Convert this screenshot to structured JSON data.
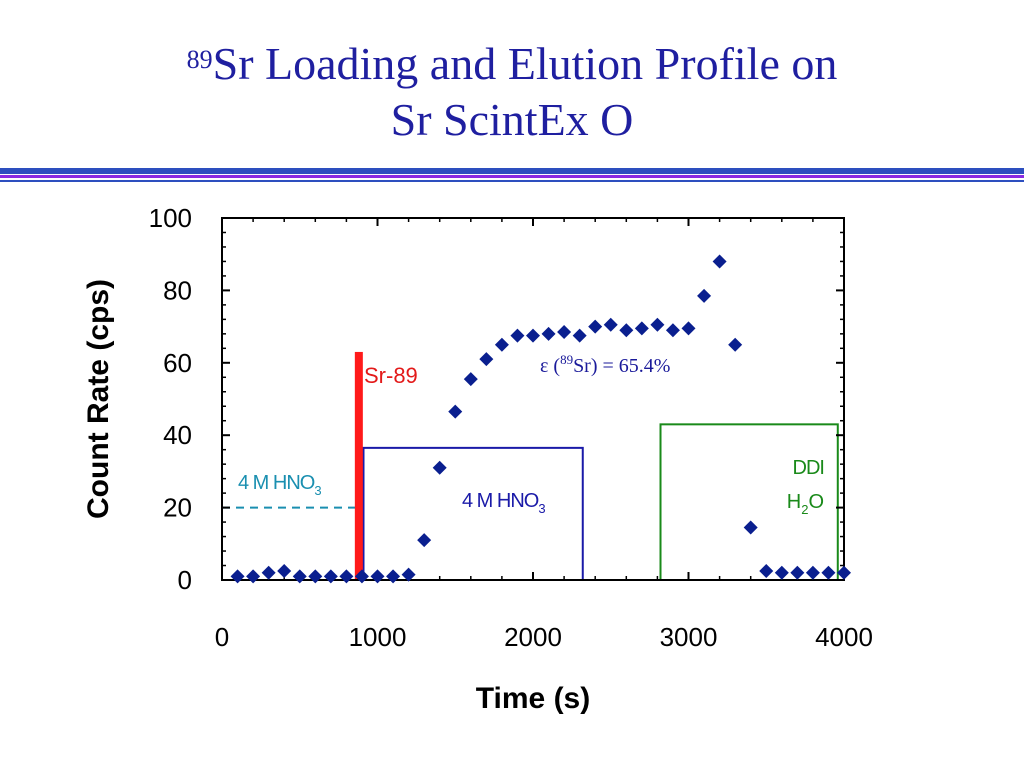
{
  "slide": {
    "title_sup": "89",
    "title_line1": "Sr Loading and Elution Profile on",
    "title_line2": "Sr ScintEx O",
    "colors": {
      "title": "#1f1fa0",
      "rule_blue": "#2d4fbf",
      "rule_purple": "#8a2be2"
    }
  },
  "chart_data": {
    "type": "scatter",
    "xlabel": "Time (s)",
    "ylabel": "Count Rate (cps)",
    "xlim": [
      0,
      4000
    ],
    "ylim": [
      0,
      100
    ],
    "x_ticks": [
      0,
      1000,
      2000,
      3000,
      4000
    ],
    "y_ticks": [
      0,
      20,
      40,
      60,
      80,
      100
    ],
    "x_tick_labels": [
      "0",
      "1000",
      "2000",
      "3000",
      "4000"
    ],
    "y_tick_labels": [
      "0",
      "20",
      "40",
      "60",
      "80",
      "100"
    ],
    "grid": false,
    "marker": "diamond",
    "marker_color": "#0a1f8f",
    "series": [
      {
        "x": [
          100,
          200,
          300,
          400,
          500,
          600,
          700,
          800,
          900,
          1000,
          1100,
          1200,
          1300,
          1400,
          1500,
          1600,
          1700,
          1800,
          1900,
          2000,
          2100,
          2200,
          2300,
          2400,
          2500,
          2600,
          2700,
          2800,
          2900,
          3000,
          3100,
          3200,
          3300,
          3400,
          3500,
          3600,
          3700,
          3800,
          3900,
          4000
        ],
        "y": [
          1,
          1,
          2,
          2.5,
          1,
          1,
          1,
          1,
          1,
          1,
          1,
          1.5,
          11,
          31,
          46.5,
          55.5,
          61,
          65,
          67.5,
          67.5,
          68,
          68.5,
          67.5,
          70,
          70.5,
          69,
          69.5,
          70.5,
          69,
          69.5,
          78.5,
          88,
          65,
          14.5,
          2.5,
          2,
          2,
          2,
          2,
          2
        ]
      }
    ],
    "annotations": {
      "sr89_label": "Sr-89",
      "sr89_bar": {
        "x": 880,
        "y_top": 63,
        "color": "#ff1a1a"
      },
      "efficiency": {
        "prefix": "ε (",
        "sup": "89",
        "suffix": "Sr) = 65.4%",
        "color": "#1a1a9a",
        "x": 2450,
        "y": 60
      },
      "load_box": {
        "line1": "4 M HNO",
        "sub": "3",
        "x0": 0,
        "x1": 880,
        "y0": 0,
        "y1": 20,
        "color": "#1a8fb0"
      },
      "rinse_box": {
        "line1": "4 M HNO",
        "sub": "3",
        "x0": 910,
        "x1": 2320,
        "y0": 0,
        "y1": 36.5,
        "color": "#1a1aa8"
      },
      "water_box": {
        "line1": "DDI",
        "line2_a": "H",
        "line2_sub": "2",
        "line2_b": "O",
        "x0": 2820,
        "x1": 3960,
        "y0": 0,
        "y1": 43,
        "color": "#1a8a1a"
      }
    }
  }
}
